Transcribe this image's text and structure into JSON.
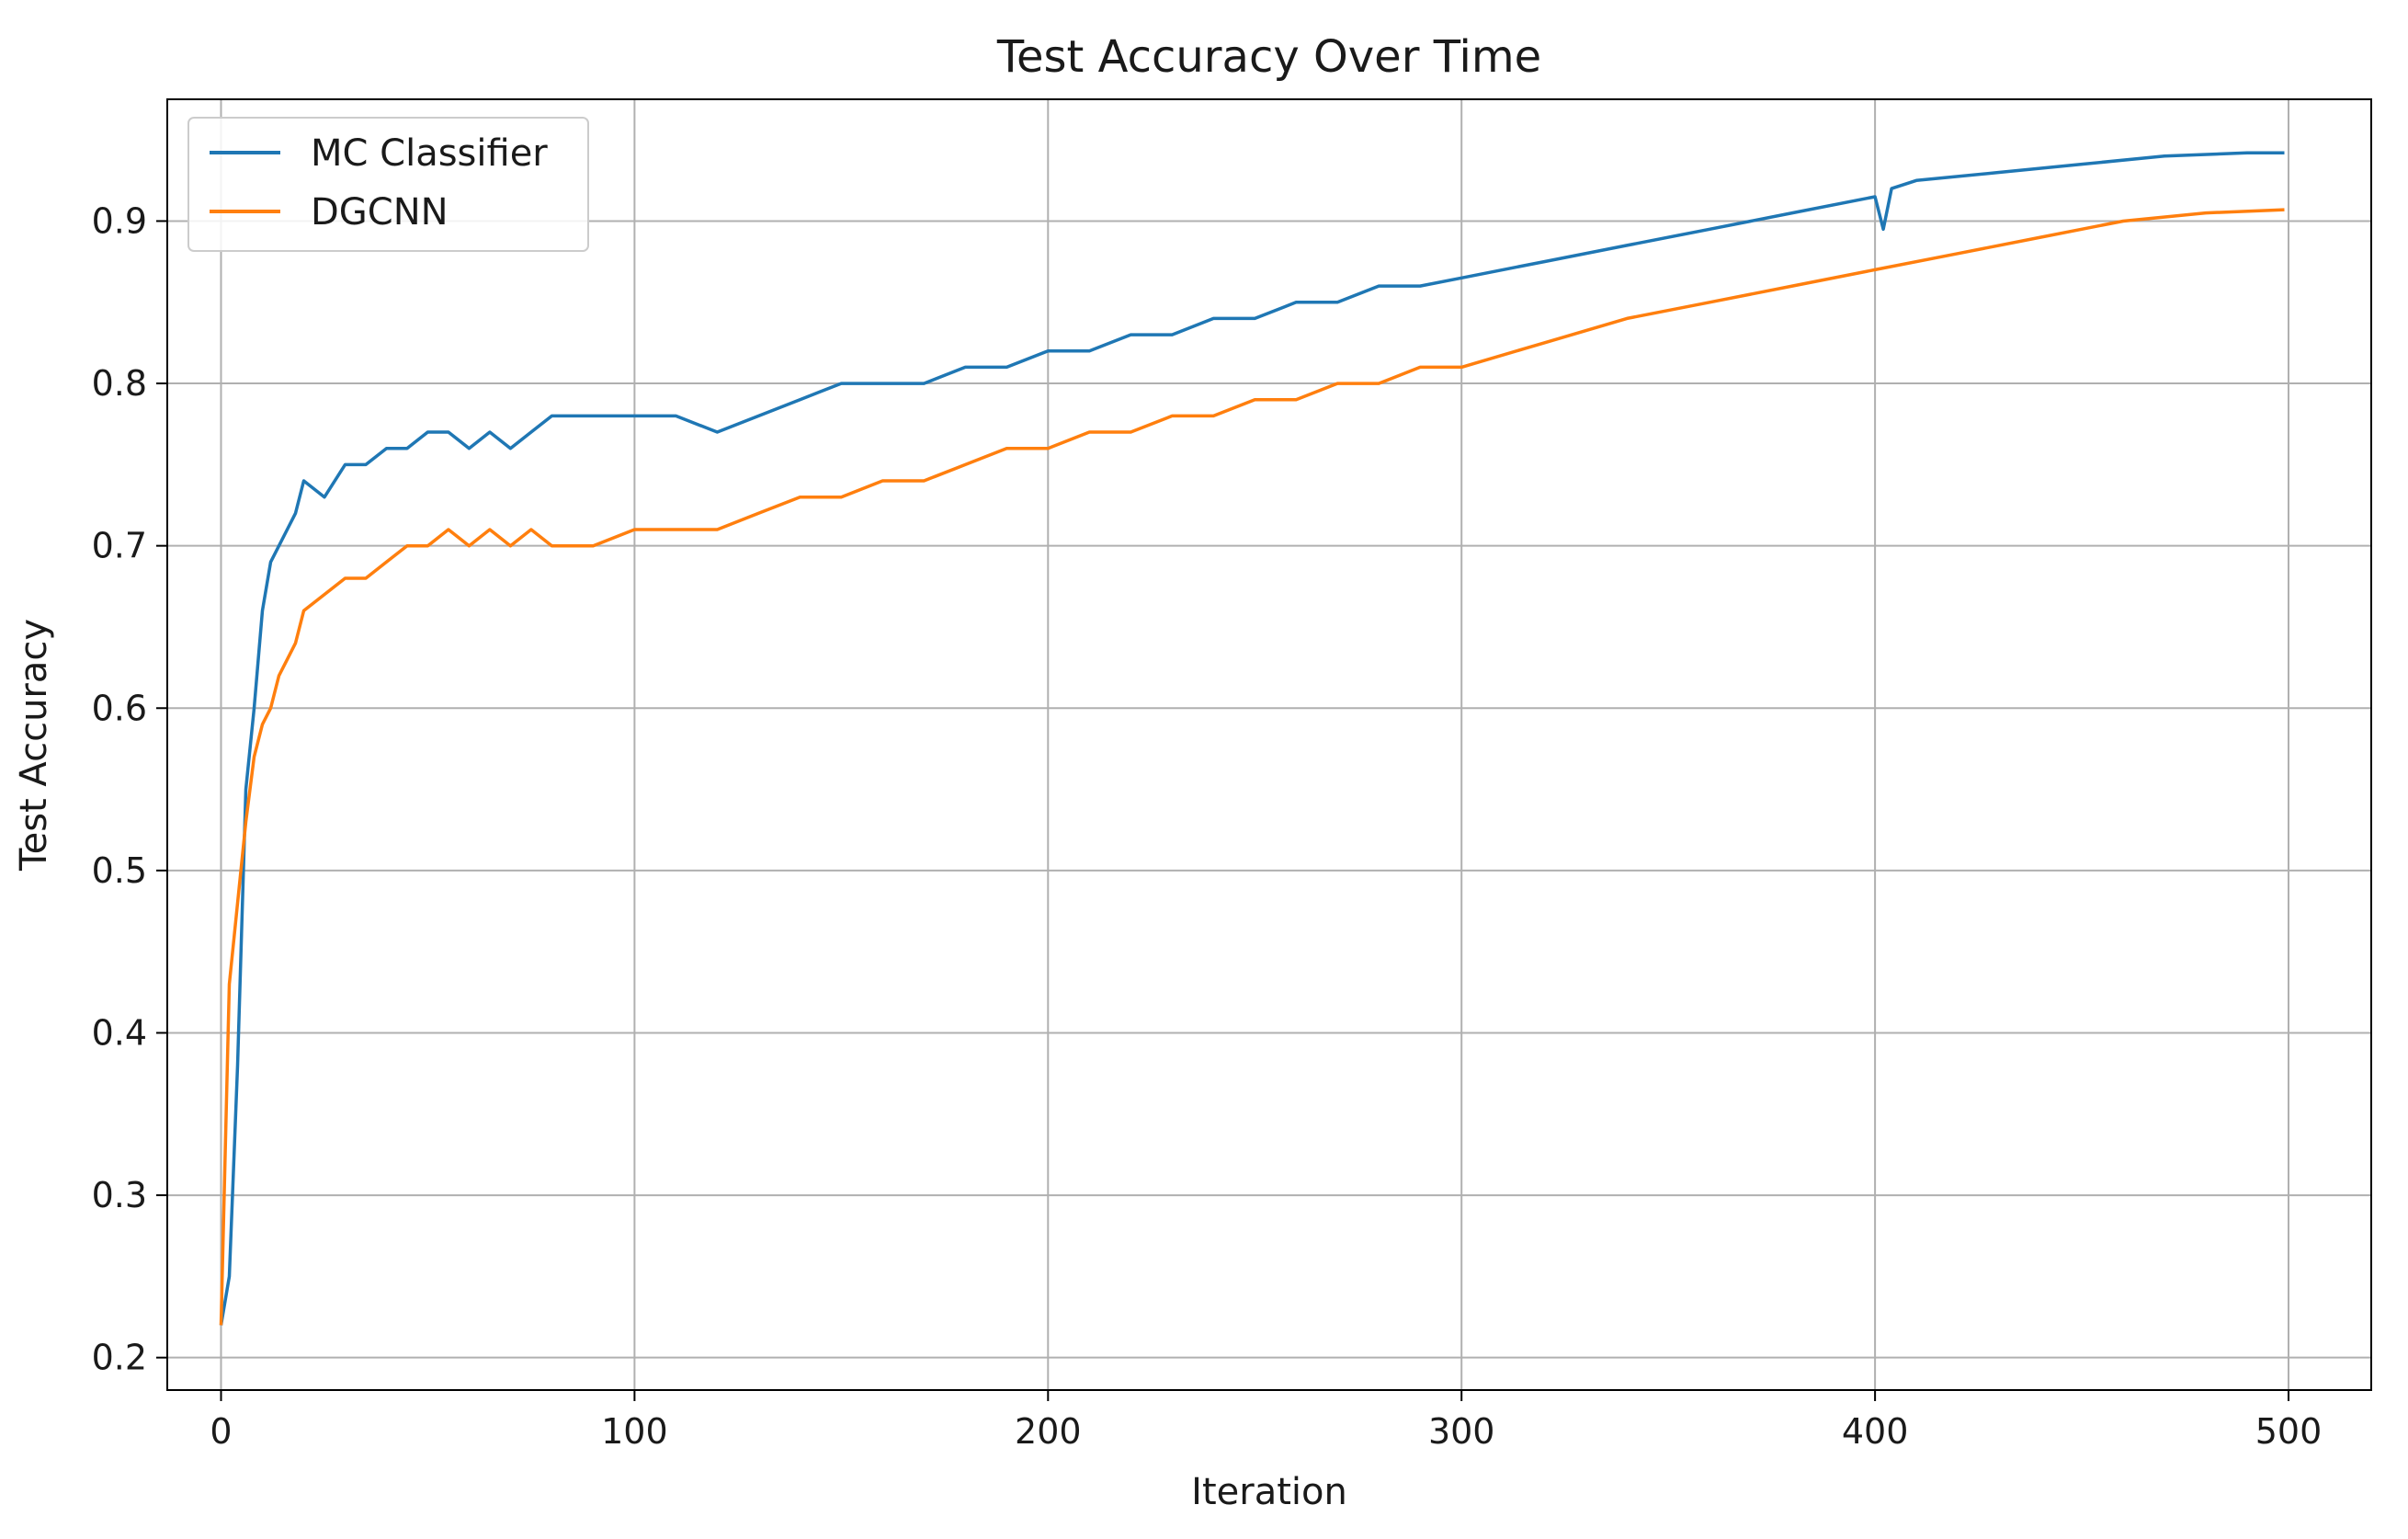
{
  "chart_data": {
    "type": "line",
    "title": "Test Accuracy Over Time",
    "xlabel": "Iteration",
    "ylabel": "Test Accuracy",
    "xlim": [
      -13,
      520
    ],
    "ylim": [
      0.18,
      0.975
    ],
    "xticks": [
      0,
      100,
      200,
      300,
      400,
      500
    ],
    "yticks": [
      0.2,
      0.3,
      0.4,
      0.5,
      0.6,
      0.7,
      0.8,
      0.9
    ],
    "xtick_labels": [
      "0",
      "100",
      "200",
      "300",
      "400",
      "500"
    ],
    "ytick_labels": [
      "0.2",
      "0.3",
      "0.4",
      "0.5",
      "0.6",
      "0.7",
      "0.8",
      "0.9"
    ],
    "grid": true,
    "legend": "top-left",
    "series": [
      {
        "name": "MC Classifier",
        "color": "#1f77b4",
        "x": [
          0,
          2,
          4,
          6,
          8,
          10,
          12,
          14,
          16,
          18,
          20,
          25,
          30,
          35,
          40,
          45,
          50,
          55,
          60,
          65,
          70,
          75,
          80,
          90,
          100,
          110,
          120,
          130,
          140,
          150,
          160,
          170,
          180,
          190,
          200,
          210,
          220,
          230,
          240,
          250,
          260,
          270,
          280,
          290,
          300,
          320,
          340,
          360,
          380,
          400,
          402,
          404,
          410,
          430,
          450,
          470,
          490,
          499
        ],
        "y": [
          0.22,
          0.25,
          0.38,
          0.55,
          0.6,
          0.66,
          0.69,
          0.7,
          0.71,
          0.72,
          0.74,
          0.73,
          0.75,
          0.75,
          0.76,
          0.76,
          0.77,
          0.77,
          0.76,
          0.77,
          0.76,
          0.77,
          0.78,
          0.78,
          0.78,
          0.78,
          0.77,
          0.78,
          0.79,
          0.8,
          0.8,
          0.8,
          0.81,
          0.81,
          0.82,
          0.82,
          0.83,
          0.83,
          0.84,
          0.84,
          0.85,
          0.85,
          0.86,
          0.86,
          0.865,
          0.875,
          0.885,
          0.895,
          0.905,
          0.915,
          0.895,
          0.92,
          0.925,
          0.93,
          0.935,
          0.94,
          0.942,
          0.942
        ]
      },
      {
        "name": "DGCNN",
        "color": "#ff7f0e",
        "x": [
          0,
          2,
          4,
          6,
          8,
          10,
          12,
          14,
          16,
          18,
          20,
          25,
          30,
          35,
          40,
          45,
          50,
          55,
          60,
          65,
          70,
          75,
          80,
          90,
          100,
          110,
          120,
          130,
          140,
          150,
          160,
          170,
          180,
          190,
          200,
          210,
          220,
          230,
          240,
          250,
          260,
          270,
          280,
          290,
          300,
          320,
          340,
          360,
          380,
          400,
          420,
          440,
          460,
          480,
          499
        ],
        "y": [
          0.22,
          0.43,
          0.48,
          0.53,
          0.57,
          0.59,
          0.6,
          0.62,
          0.63,
          0.64,
          0.66,
          0.67,
          0.68,
          0.68,
          0.69,
          0.7,
          0.7,
          0.71,
          0.7,
          0.71,
          0.7,
          0.71,
          0.7,
          0.7,
          0.71,
          0.71,
          0.71,
          0.72,
          0.73,
          0.73,
          0.74,
          0.74,
          0.75,
          0.76,
          0.76,
          0.77,
          0.77,
          0.78,
          0.78,
          0.79,
          0.79,
          0.8,
          0.8,
          0.81,
          0.81,
          0.825,
          0.84,
          0.85,
          0.86,
          0.87,
          0.88,
          0.89,
          0.9,
          0.905,
          0.907
        ]
      }
    ]
  }
}
